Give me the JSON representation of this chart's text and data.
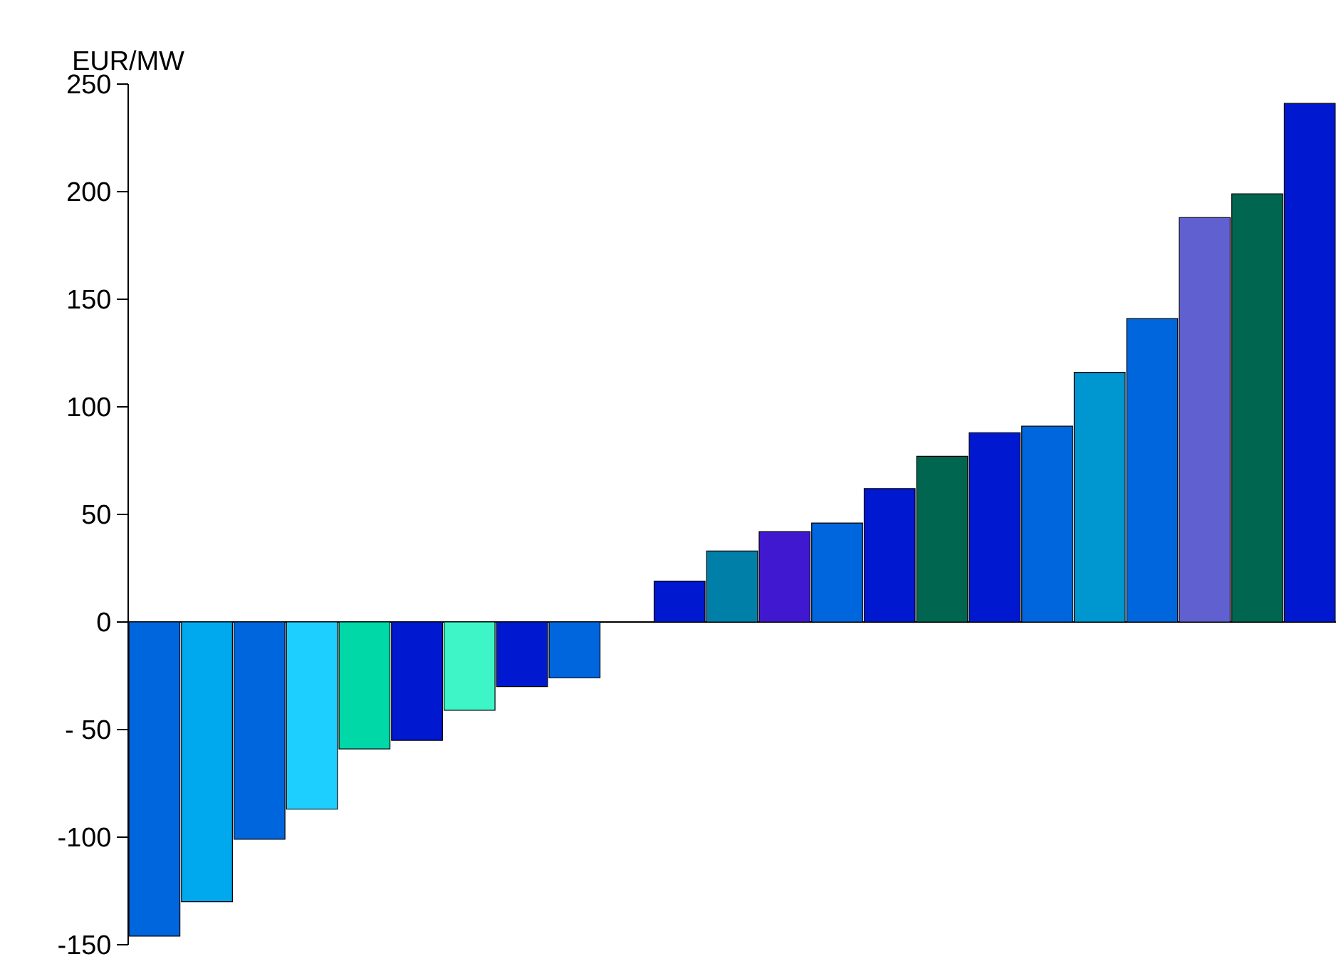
{
  "chart_data": {
    "type": "bar",
    "ylabel": "EUR/MW",
    "categories": [
      null,
      null,
      null,
      null,
      null,
      null,
      null,
      null,
      null,
      null,
      null,
      null,
      null,
      null,
      null,
      null,
      null,
      null,
      null,
      null,
      null,
      null,
      null
    ],
    "values": [
      -146,
      -130,
      -101,
      -87,
      -59,
      -55,
      -41,
      -30,
      -26,
      null,
      19,
      33,
      42,
      46,
      62,
      77,
      88,
      91,
      116,
      141,
      188,
      199,
      241
    ],
    "colors": [
      "#0066dd",
      "#00a8ee",
      "#0066dd",
      "#1ccfff",
      "#00d8a8",
      "#0018d0",
      "#3ef5c8",
      "#0018d0",
      "#0066dd",
      "#0066dd",
      "#0018d0",
      "#0080a8",
      "#4018d0",
      "#0066dd",
      "#0018d0",
      "#006650",
      "#0018d0",
      "#0066dd",
      "#0096d0",
      "#0066dd",
      "#6060d0",
      "#006650",
      "#0018d0"
    ],
    "ylim": [
      -150,
      250
    ],
    "yticks": [
      250,
      200,
      150,
      100,
      50,
      0,
      {
        "value": -50,
        "label": "- 50"
      },
      -100,
      -150
    ],
    "tick_labels": "y"
  }
}
